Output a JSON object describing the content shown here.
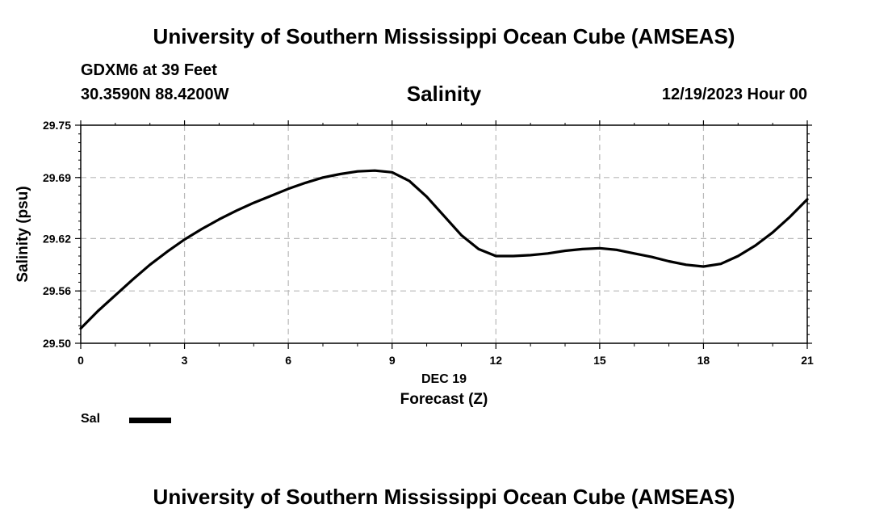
{
  "header": {
    "title": "University of Southern Mississippi Ocean Cube (AMSEAS)",
    "station": "GDXM6 at 39 Feet",
    "coords": "30.3590N  88.4200W",
    "datetime": "12/19/2023 Hour 00"
  },
  "footer": {
    "title": "University of Southern Mississippi Ocean Cube (AMSEAS)"
  },
  "chart_data": {
    "type": "line",
    "title": "Salinity",
    "xlabel": "Forecast (Z)",
    "xsublabel": "DEC 19",
    "ylabel": "Salinity (psu)",
    "xlim": [
      0,
      21
    ],
    "ylim": [
      29.5,
      29.75
    ],
    "xticks": [
      0,
      3,
      6,
      9,
      12,
      15,
      18,
      21
    ],
    "yticks": [
      29.5,
      29.56,
      29.62,
      29.69,
      29.75
    ],
    "ytick_labels": [
      "29.50",
      "29.56",
      "29.62",
      "29.69",
      "29.75"
    ],
    "grid": true,
    "series": [
      {
        "name": "Sal",
        "color": "#000000",
        "x": [
          0,
          0.5,
          1,
          1.5,
          2,
          2.5,
          3,
          3.5,
          4,
          4.5,
          5,
          5.5,
          6,
          6.5,
          7,
          7.5,
          8,
          8.5,
          9,
          9.5,
          10,
          10.5,
          11,
          11.5,
          12,
          12.5,
          13,
          13.5,
          14,
          14.5,
          15,
          15.5,
          16,
          16.5,
          17,
          17.5,
          18,
          18.5,
          19,
          19.5,
          20,
          20.5,
          21
        ],
        "y": [
          29.517,
          29.537,
          29.555,
          29.573,
          29.59,
          29.605,
          29.619,
          29.631,
          29.642,
          29.652,
          29.661,
          29.669,
          29.677,
          29.684,
          29.69,
          29.694,
          29.697,
          29.698,
          29.696,
          29.686,
          29.668,
          29.646,
          29.624,
          29.608,
          29.6,
          29.6,
          29.601,
          29.603,
          29.606,
          29.608,
          29.609,
          29.607,
          29.603,
          29.599,
          29.594,
          29.59,
          29.588,
          29.591,
          29.6,
          29.612,
          29.627,
          29.645,
          29.665
        ]
      }
    ],
    "legend": {
      "label": "Sal",
      "position": "bottom-left"
    }
  }
}
